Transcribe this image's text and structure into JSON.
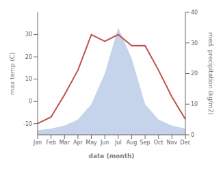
{
  "chart_data": {
    "type": "line",
    "categories": [
      "Jan",
      "Feb",
      "Mar",
      "Apr",
      "May",
      "Jun",
      "Jul",
      "Aug",
      "Sep",
      "Oct",
      "Nov",
      "Dec"
    ],
    "series": [
      {
        "type": "area",
        "axis": "y2",
        "color": "#c5d4ea",
        "values": [
          1.5,
          2,
          3,
          5,
          10,
          20,
          35,
          25,
          10,
          5,
          3,
          2
        ]
      },
      {
        "type": "line",
        "color": "#c0504d",
        "values": [
          -10,
          -7,
          3,
          14,
          30,
          27,
          30,
          25,
          25,
          14,
          2,
          -8
        ]
      }
    ],
    "xlabel": "date (month)",
    "ylabel": "max temp (C)",
    "y2label": "med. precipitation (kg/m2)",
    "ylim": [
      -15,
      40
    ],
    "yticks": [
      -10,
      0,
      10,
      20,
      30
    ],
    "y2lim": [
      0,
      40
    ],
    "y2ticks": [
      0,
      10,
      20,
      30,
      40
    ],
    "grid": false
  }
}
